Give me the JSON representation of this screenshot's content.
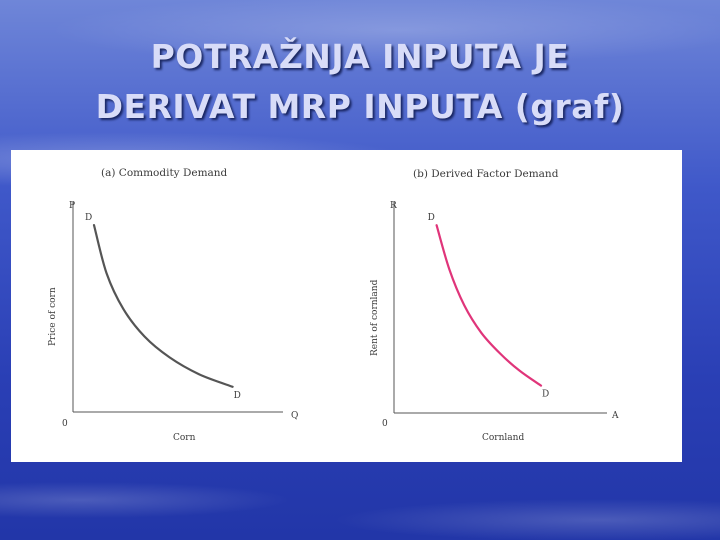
{
  "slide": {
    "title_line1": "POTRAŽNJA INPUTA JE",
    "title_line2": "DERIVAT  MRP  INPUTA (graf)"
  },
  "colors": {
    "curve_a": "#555555",
    "curve_b": "#e0357a",
    "axis": "#555555",
    "background_top": "#6f86d8",
    "background_bottom": "#2236a8"
  },
  "chart_data": [
    {
      "type": "line",
      "title": "(a) Commodity Demand",
      "xlabel": "Corn",
      "ylabel": "Price of corn",
      "x_axis_end_label": "Q",
      "y_axis_end_label": "P",
      "origin_label": "0",
      "curve_start_label": "D",
      "curve_end_label": "D",
      "grid": false,
      "xlim": [
        0,
        10
      ],
      "ylim": [
        0,
        10
      ],
      "series": [
        {
          "x": [
            1.0,
            1.6,
            2.4,
            3.4,
            4.6,
            6.0,
            7.6
          ],
          "y": [
            8.9,
            6.6,
            4.9,
            3.6,
            2.6,
            1.8,
            1.2
          ]
        }
      ]
    },
    {
      "type": "line",
      "title": "(b) Derived Factor Demand",
      "xlabel": "Cornland",
      "ylabel": "Rent of cornland",
      "x_axis_end_label": "A",
      "y_axis_end_label": "R",
      "origin_label": "0",
      "curve_start_label": "D",
      "curve_end_label": "D",
      "grid": false,
      "xlim": [
        0,
        10
      ],
      "ylim": [
        0,
        10
      ],
      "series": [
        {
          "x": [
            2.0,
            2.6,
            3.3,
            4.1,
            5.0,
            5.9,
            6.9
          ],
          "y": [
            8.9,
            6.8,
            5.1,
            3.8,
            2.8,
            2.0,
            1.3
          ]
        }
      ]
    }
  ]
}
